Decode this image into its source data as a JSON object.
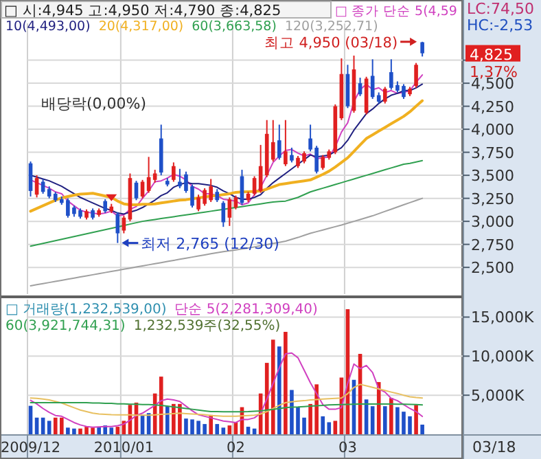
{
  "chart_data": [
    {
      "type": "candlestick",
      "title": "□ 시:4,945 고:4,950 저:4,790 종:4,825",
      "tick_labels": "y",
      "grid": true,
      "legend": "top left",
      "categories": [
        "2009/12",
        null,
        null,
        null,
        null,
        null,
        null,
        null,
        null,
        null,
        null,
        null,
        null,
        null,
        null,
        "2010/01",
        null,
        null,
        null,
        null,
        null,
        null,
        null,
        null,
        null,
        null,
        null,
        null,
        null,
        null,
        null,
        null,
        null,
        "02",
        null,
        null,
        null,
        null,
        null,
        null,
        null,
        null,
        null,
        null,
        null,
        null,
        null,
        null,
        null,
        null,
        null,
        "03",
        null,
        null,
        null,
        null,
        null,
        null,
        null,
        null,
        null,
        null,
        null,
        null
      ],
      "ohlc": [
        [
          3630,
          3650,
          3270,
          3330
        ],
        [
          3290,
          3500,
          3260,
          3470
        ],
        [
          3430,
          3460,
          3300,
          3320
        ],
        [
          3350,
          3380,
          3250,
          3270
        ],
        [
          3300,
          3320,
          3210,
          3230
        ],
        [
          3240,
          3270,
          3180,
          3200
        ],
        [
          3230,
          3250,
          3040,
          3060
        ],
        [
          3150,
          3170,
          3050,
          3080
        ],
        [
          3120,
          3140,
          3030,
          3050
        ],
        [
          3040,
          3130,
          3020,
          3110
        ],
        [
          3120,
          3140,
          3020,
          3040
        ],
        [
          3070,
          3140,
          3050,
          3120
        ],
        [
          3220,
          3240,
          3090,
          3110
        ],
        [
          3110,
          3190,
          3090,
          3160
        ],
        [
          3080,
          3100,
          2765,
          2870
        ],
        [
          2900,
          3060,
          2870,
          3040
        ],
        [
          3020,
          3520,
          3000,
          3470
        ],
        [
          3420,
          3440,
          3230,
          3250
        ],
        [
          3270,
          3450,
          3250,
          3430
        ],
        [
          3330,
          3700,
          3310,
          3480
        ],
        [
          3450,
          3560,
          3420,
          3520
        ],
        [
          3900,
          4050,
          3500,
          3530
        ],
        [
          3440,
          3470,
          3380,
          3400
        ],
        [
          3450,
          3640,
          3430,
          3600
        ],
        [
          3430,
          3570,
          3360,
          3380
        ],
        [
          3510,
          3540,
          3310,
          3330
        ],
        [
          3380,
          3400,
          3150,
          3170
        ],
        [
          3130,
          3290,
          3110,
          3260
        ],
        [
          3190,
          3360,
          3170,
          3340
        ],
        [
          3230,
          3460,
          3210,
          3380
        ],
        [
          3320,
          3350,
          3210,
          3230
        ],
        [
          3200,
          3220,
          2940,
          2990
        ],
        [
          3040,
          3260,
          2950,
          3240
        ],
        [
          3150,
          3280,
          3130,
          3260
        ],
        [
          3490,
          3560,
          3180,
          3200
        ],
        [
          3230,
          3320,
          3210,
          3300
        ],
        [
          3300,
          3490,
          3280,
          3470
        ],
        [
          3330,
          3830,
          3310,
          3600
        ],
        [
          3500,
          4100,
          3480,
          3950
        ],
        [
          3670,
          4100,
          3650,
          3860
        ],
        [
          3880,
          4050,
          3670,
          3690
        ],
        [
          3620,
          4100,
          3600,
          3760
        ],
        [
          3720,
          3800,
          3640,
          3660
        ],
        [
          3600,
          3710,
          3580,
          3690
        ],
        [
          3650,
          3760,
          3630,
          3740
        ],
        [
          3900,
          4050,
          3760,
          3780
        ],
        [
          3800,
          3820,
          3520,
          3540
        ],
        [
          3580,
          3720,
          3560,
          3700
        ],
        [
          3690,
          3780,
          3670,
          3760
        ],
        [
          3750,
          4270,
          3730,
          4250
        ],
        [
          4120,
          4770,
          4100,
          4600
        ],
        [
          4600,
          4700,
          4230,
          4250
        ],
        [
          4200,
          4800,
          4180,
          4650
        ],
        [
          4500,
          4560,
          4360,
          4380
        ],
        [
          4180,
          4570,
          4160,
          4550
        ],
        [
          4580,
          4760,
          4330,
          4350
        ],
        [
          4370,
          4400,
          4280,
          4300
        ],
        [
          4300,
          4460,
          4280,
          4440
        ],
        [
          4620,
          4760,
          4430,
          4450
        ],
        [
          4480,
          4520,
          4400,
          4420
        ],
        [
          4470,
          4490,
          4330,
          4350
        ],
        [
          4380,
          4460,
          4360,
          4440
        ],
        [
          4470,
          4720,
          4450,
          4700
        ],
        [
          4945,
          4950,
          4790,
          4825
        ]
      ],
      "colors": [
        "#1f50c8",
        "#e02020",
        "#1f50c8",
        "#1f50c8",
        "#1f50c8",
        "#1f50c8",
        "#1f50c8",
        "#1f50c8",
        "#1f50c8",
        "#e02020",
        "#1f50c8",
        "#e02020",
        "#1f50c8",
        "#e02020",
        "#1f50c8",
        "#e02020",
        "#e02020",
        "#1f50c8",
        "#e02020",
        "#e02020",
        "#e02020",
        "#1f50c8",
        "#1f50c8",
        "#e02020",
        "#1f50c8",
        "#1f50c8",
        "#1f50c8",
        "#e02020",
        "#e02020",
        "#e02020",
        "#1f50c8",
        "#1f50c8",
        "#e02020",
        "#e02020",
        "#1f50c8",
        "#e02020",
        "#e02020",
        "#e02020",
        "#e02020",
        "#e02020",
        "#1f50c8",
        "#e02020",
        "#1f50c8",
        "#e02020",
        "#e02020",
        "#1f50c8",
        "#1f50c8",
        "#e02020",
        "#e02020",
        "#e02020",
        "#e02020",
        "#1f50c8",
        "#e02020",
        "#1f50c8",
        "#e02020",
        "#1f50c8",
        "#1f50c8",
        "#e02020",
        "#1f50c8",
        "#1f50c8",
        "#1f50c8",
        "#e02020",
        "#e02020",
        "#1f50c8"
      ],
      "series": [
        {
          "type": "line",
          "name": "□ 종가 단순 5(4,59",
          "color": "#d040c0",
          "values": [
            3450,
            3420,
            3390,
            3360,
            3320,
            3300,
            3220,
            3170,
            3120,
            3100,
            3090,
            3080,
            3090,
            3110,
            3060,
            3070,
            3130,
            3160,
            3250,
            3330,
            3430,
            3440,
            3470,
            3510,
            3490,
            3450,
            3380,
            3350,
            3300,
            3300,
            3280,
            3240,
            3230,
            3220,
            3180,
            3200,
            3290,
            3370,
            3500,
            3640,
            3710,
            3770,
            3780,
            3740,
            3710,
            3730,
            3680,
            3690,
            3700,
            3810,
            3970,
            4070,
            4300,
            4430,
            4490,
            4430,
            4450,
            4400,
            4420,
            4390,
            4400,
            4420,
            4510,
            4590
          ]
        },
        {
          "type": "line",
          "name": "10(4,493,00)",
          "color": "#202080",
          "values": [
            3500,
            3480,
            3460,
            3440,
            3410,
            3380,
            3340,
            3300,
            3260,
            3230,
            3200,
            3170,
            3140,
            3120,
            3090,
            3080,
            3100,
            3120,
            3150,
            3190,
            3230,
            3280,
            3310,
            3370,
            3400,
            3420,
            3410,
            3410,
            3400,
            3390,
            3370,
            3330,
            3300,
            3260,
            3240,
            3240,
            3260,
            3290,
            3360,
            3420,
            3470,
            3520,
            3570,
            3620,
            3670,
            3720,
            3700,
            3710,
            3720,
            3760,
            3800,
            3880,
            3990,
            4080,
            4170,
            4220,
            4280,
            4330,
            4370,
            4390,
            4420,
            4420,
            4450,
            4490
          ]
        },
        {
          "type": "line",
          "name": "20(4,317,00)",
          "color": "#f0b020",
          "values": [
            3110,
            3140,
            3170,
            3200,
            3230,
            3255,
            3270,
            3285,
            3295,
            3300,
            3305,
            3290,
            3275,
            3260,
            3220,
            3190,
            3180,
            3180,
            3185,
            3185,
            3190,
            3200,
            3210,
            3220,
            3230,
            3235,
            3245,
            3255,
            3265,
            3275,
            3280,
            3290,
            3300,
            3315,
            3320,
            3322,
            3325,
            3330,
            3350,
            3375,
            3400,
            3410,
            3420,
            3430,
            3440,
            3450,
            3480,
            3510,
            3545,
            3590,
            3640,
            3690,
            3760,
            3830,
            3900,
            3940,
            3980,
            4020,
            4060,
            4100,
            4140,
            4190,
            4250,
            4310
          ]
        },
        {
          "type": "line",
          "name": "60(3,663,58)",
          "color": "#30a050",
          "values": [
            2730,
            2745,
            2760,
            2775,
            2790,
            2805,
            2820,
            2835,
            2850,
            2865,
            2880,
            2895,
            2910,
            2925,
            2940,
            2955,
            2970,
            2985,
            3000,
            3010,
            3020,
            3030,
            3040,
            3050,
            3060,
            3070,
            3080,
            3090,
            3100,
            3110,
            3120,
            3130,
            3140,
            3150,
            3160,
            3170,
            3180,
            3190,
            3200,
            3210,
            3215,
            3220,
            3240,
            3260,
            3290,
            3320,
            3340,
            3360,
            3380,
            3400,
            3420,
            3440,
            3460,
            3480,
            3500,
            3520,
            3540,
            3560,
            3580,
            3600,
            3620,
            3630,
            3645,
            3660
          ]
        },
        {
          "type": "line",
          "name": "120(3,252,71)",
          "color": "#a0a0a0",
          "values": [
            2300,
            2312,
            2324,
            2336,
            2348,
            2360,
            2372,
            2384,
            2396,
            2408,
            2420,
            2432,
            2444,
            2456,
            2468,
            2480,
            2492,
            2504,
            2516,
            2528,
            2540,
            2552,
            2564,
            2576,
            2588,
            2600,
            2612,
            2624,
            2636,
            2648,
            2660,
            2670,
            2680,
            2690,
            2700,
            2710,
            2722,
            2735,
            2748,
            2760,
            2772,
            2785,
            2805,
            2825,
            2848,
            2870,
            2888,
            2906,
            2924,
            2942,
            2960,
            2980,
            3000,
            3020,
            3040,
            3060,
            3084,
            3108,
            3132,
            3156,
            3180,
            3203,
            3227,
            3250
          ]
        }
      ],
      "ylim": [
        2210,
        5150
      ],
      "yticks": [
        {
          "value": 2500,
          "label": "2,500"
        },
        {
          "value": 2750,
          "label": "2,750"
        },
        {
          "value": 3000,
          "label": "3,000"
        },
        {
          "value": 3250,
          "label": "3,250"
        },
        {
          "value": 3500,
          "label": "3,500"
        },
        {
          "value": 3750,
          "label": "3,750"
        },
        {
          "value": 4000,
          "label": "4,000"
        },
        {
          "value": 4250,
          "label": "4,250"
        },
        {
          "value": 4500,
          "label": "4,500"
        },
        {
          "value": 4750,
          "label": null
        }
      ],
      "annotations": [
        "최고 4,950 (03/18)",
        "최저 2,765 (12/30)",
        "배당락(0,00%)",
        "LC:74,50",
        "HC:-2,53",
        "4,825",
        "1,37%"
      ]
    },
    {
      "type": "bar",
      "grid": true,
      "legend": "top left",
      "categories": [
        "2009/12",
        null,
        null,
        null,
        null,
        null,
        null,
        null,
        null,
        null,
        null,
        null,
        null,
        null,
        null,
        "2010/01",
        null,
        null,
        null,
        null,
        null,
        null,
        null,
        null,
        null,
        null,
        null,
        null,
        null,
        null,
        null,
        null,
        null,
        "02",
        null,
        null,
        null,
        null,
        null,
        null,
        null,
        null,
        null,
        null,
        null,
        null,
        null,
        null,
        null,
        null,
        null,
        "03",
        null,
        null,
        null,
        null,
        null,
        null,
        null,
        null,
        null,
        null,
        null,
        null
      ],
      "series": [
        {
          "type": "bar",
          "colors": [
            "#1f50c8",
            "#1f50c8",
            "#1f50c8",
            "#1f50c8",
            "#e02020",
            "#e02020",
            "#1f50c8",
            "#1f50c8",
            "#e02020",
            "#e02020",
            "#e02020",
            "#1f50c8",
            "#1f50c8",
            "#1f50c8",
            "#e02020",
            "#e02020",
            "#e02020",
            "#e02020",
            "#1f50c8",
            "#1f50c8",
            "#e02020",
            "#e02020",
            "#1f50c8",
            "#e02020",
            "#e02020",
            "#1f50c8",
            "#1f50c8",
            "#1f50c8",
            "#1f50c8",
            "#e02020",
            "#1f50c8",
            "#1f50c8",
            "#e02020",
            "#e02020",
            "#e02020",
            "#1f50c8",
            "#1f50c8",
            "#e02020",
            "#e02020",
            "#e02020",
            "#1f50c8",
            "#e02020",
            "#1f50c8",
            "#1f50c8",
            "#1f50c8",
            "#e02020",
            "#e02020",
            "#1f50c8",
            "#1f50c8",
            "#e02020",
            "#e02020",
            "#e02020",
            "#1f50c8",
            "#e02020",
            "#1f50c8",
            "#1f50c8",
            "#e02020",
            "#1f50c8",
            "#e02020",
            "#1f50c8",
            "#1f50c8",
            "#1f50c8",
            "#e02020",
            "#1f50c8"
          ],
          "values": [
            3640,
            2130,
            2130,
            1720,
            2130,
            2130,
            850,
            730,
            730,
            960,
            850,
            960,
            1130,
            850,
            960,
            1720,
            3760,
            4050,
            2480,
            2710,
            5220,
            7380,
            3590,
            3880,
            3880,
            2010,
            1900,
            1720,
            1310,
            2480,
            1310,
            850,
            1130,
            1540,
            3470,
            960,
            730,
            5220,
            9140,
            12110,
            11240,
            13110,
            5670,
            3470,
            2130,
            3880,
            6390,
            2300,
            1540,
            1720,
            7260,
            16010,
            6970,
            10290,
            4460,
            3590,
            6680,
            3590,
            4640,
            3470,
            2890,
            2300,
            3760,
            1233
          ]
        },
        {
          "type": "line",
          "name": "단순 5(2,281,309,40)",
          "color": "#d040c0",
          "values": [
            4340,
            3880,
            3300,
            2800,
            2400,
            2300,
            1900,
            1500,
            1200,
            1000,
            900,
            950,
            1000,
            1000,
            1100,
            1300,
            1800,
            2400,
            2700,
            3200,
            3700,
            4300,
            4500,
            4400,
            4200,
            3600,
            3000,
            2500,
            2300,
            2100,
            1900,
            1700,
            1600,
            1500,
            1900,
            1900,
            2100,
            2700,
            4500,
            6500,
            8500,
            10300,
            10400,
            9800,
            8200,
            6600,
            5200,
            3800,
            3200,
            3200,
            3400,
            6500,
            9000,
            8400,
            8800,
            7900,
            5800,
            5400,
            4600,
            4300,
            3800,
            3300,
            2900,
            2280
          ]
        },
        {
          "type": "line",
          "color": "#e8c060",
          "values": [
            4640,
            4600,
            4500,
            4400,
            4200,
            4000,
            3700,
            3400,
            3100,
            2900,
            2700,
            2600,
            2550,
            2500,
            2480,
            2480,
            2480,
            2450,
            2450,
            2450,
            2480,
            2550,
            2600,
            2650,
            2700,
            2650,
            2600,
            2550,
            2500,
            2400,
            2350,
            2300,
            2300,
            2300,
            2350,
            2400,
            2450,
            2600,
            2900,
            3300,
            3700,
            4050,
            4150,
            4250,
            4300,
            4400,
            4450,
            4500,
            4550,
            4600,
            4640,
            5200,
            6000,
            6390,
            6200,
            6000,
            5800,
            5600,
            5400,
            5220,
            5000,
            4800,
            4700,
            4640
          ]
        },
        {
          "type": "line",
          "name": "60(3,921,744,31)",
          "color": "#30a050",
          "values": [
            4050,
            4050,
            4050,
            4050,
            4050,
            4050,
            4050,
            4050,
            4050,
            4050,
            4000,
            4000,
            3950,
            3950,
            3900,
            3900,
            3850,
            3850,
            3800,
            3800,
            3760,
            3700,
            3600,
            3500,
            3400,
            3300,
            3200,
            3100,
            3000,
            2900,
            2900,
            2890,
            2880,
            2880,
            2880,
            2900,
            2950,
            3000,
            3100,
            3180,
            3300,
            3400,
            3470,
            3500,
            3550,
            3600,
            3650,
            3700,
            3760,
            3780,
            3800,
            3820,
            3850,
            3880,
            3880,
            3880,
            3880,
            3870,
            3860,
            3850,
            3840,
            3820,
            3800,
            3760
          ]
        }
      ],
      "ylim": [
        0,
        17240
      ],
      "yticks": [
        {
          "value": 5000,
          "label": "5,000K"
        },
        {
          "value": 10000,
          "label": "10,000K"
        },
        {
          "value": 15000,
          "label": "15,000K"
        }
      ],
      "annotations": [
        "□ 거래량(1,232,539,00)",
        "1,232,539주(32,55%)",
        "03/18"
      ]
    }
  ]
}
